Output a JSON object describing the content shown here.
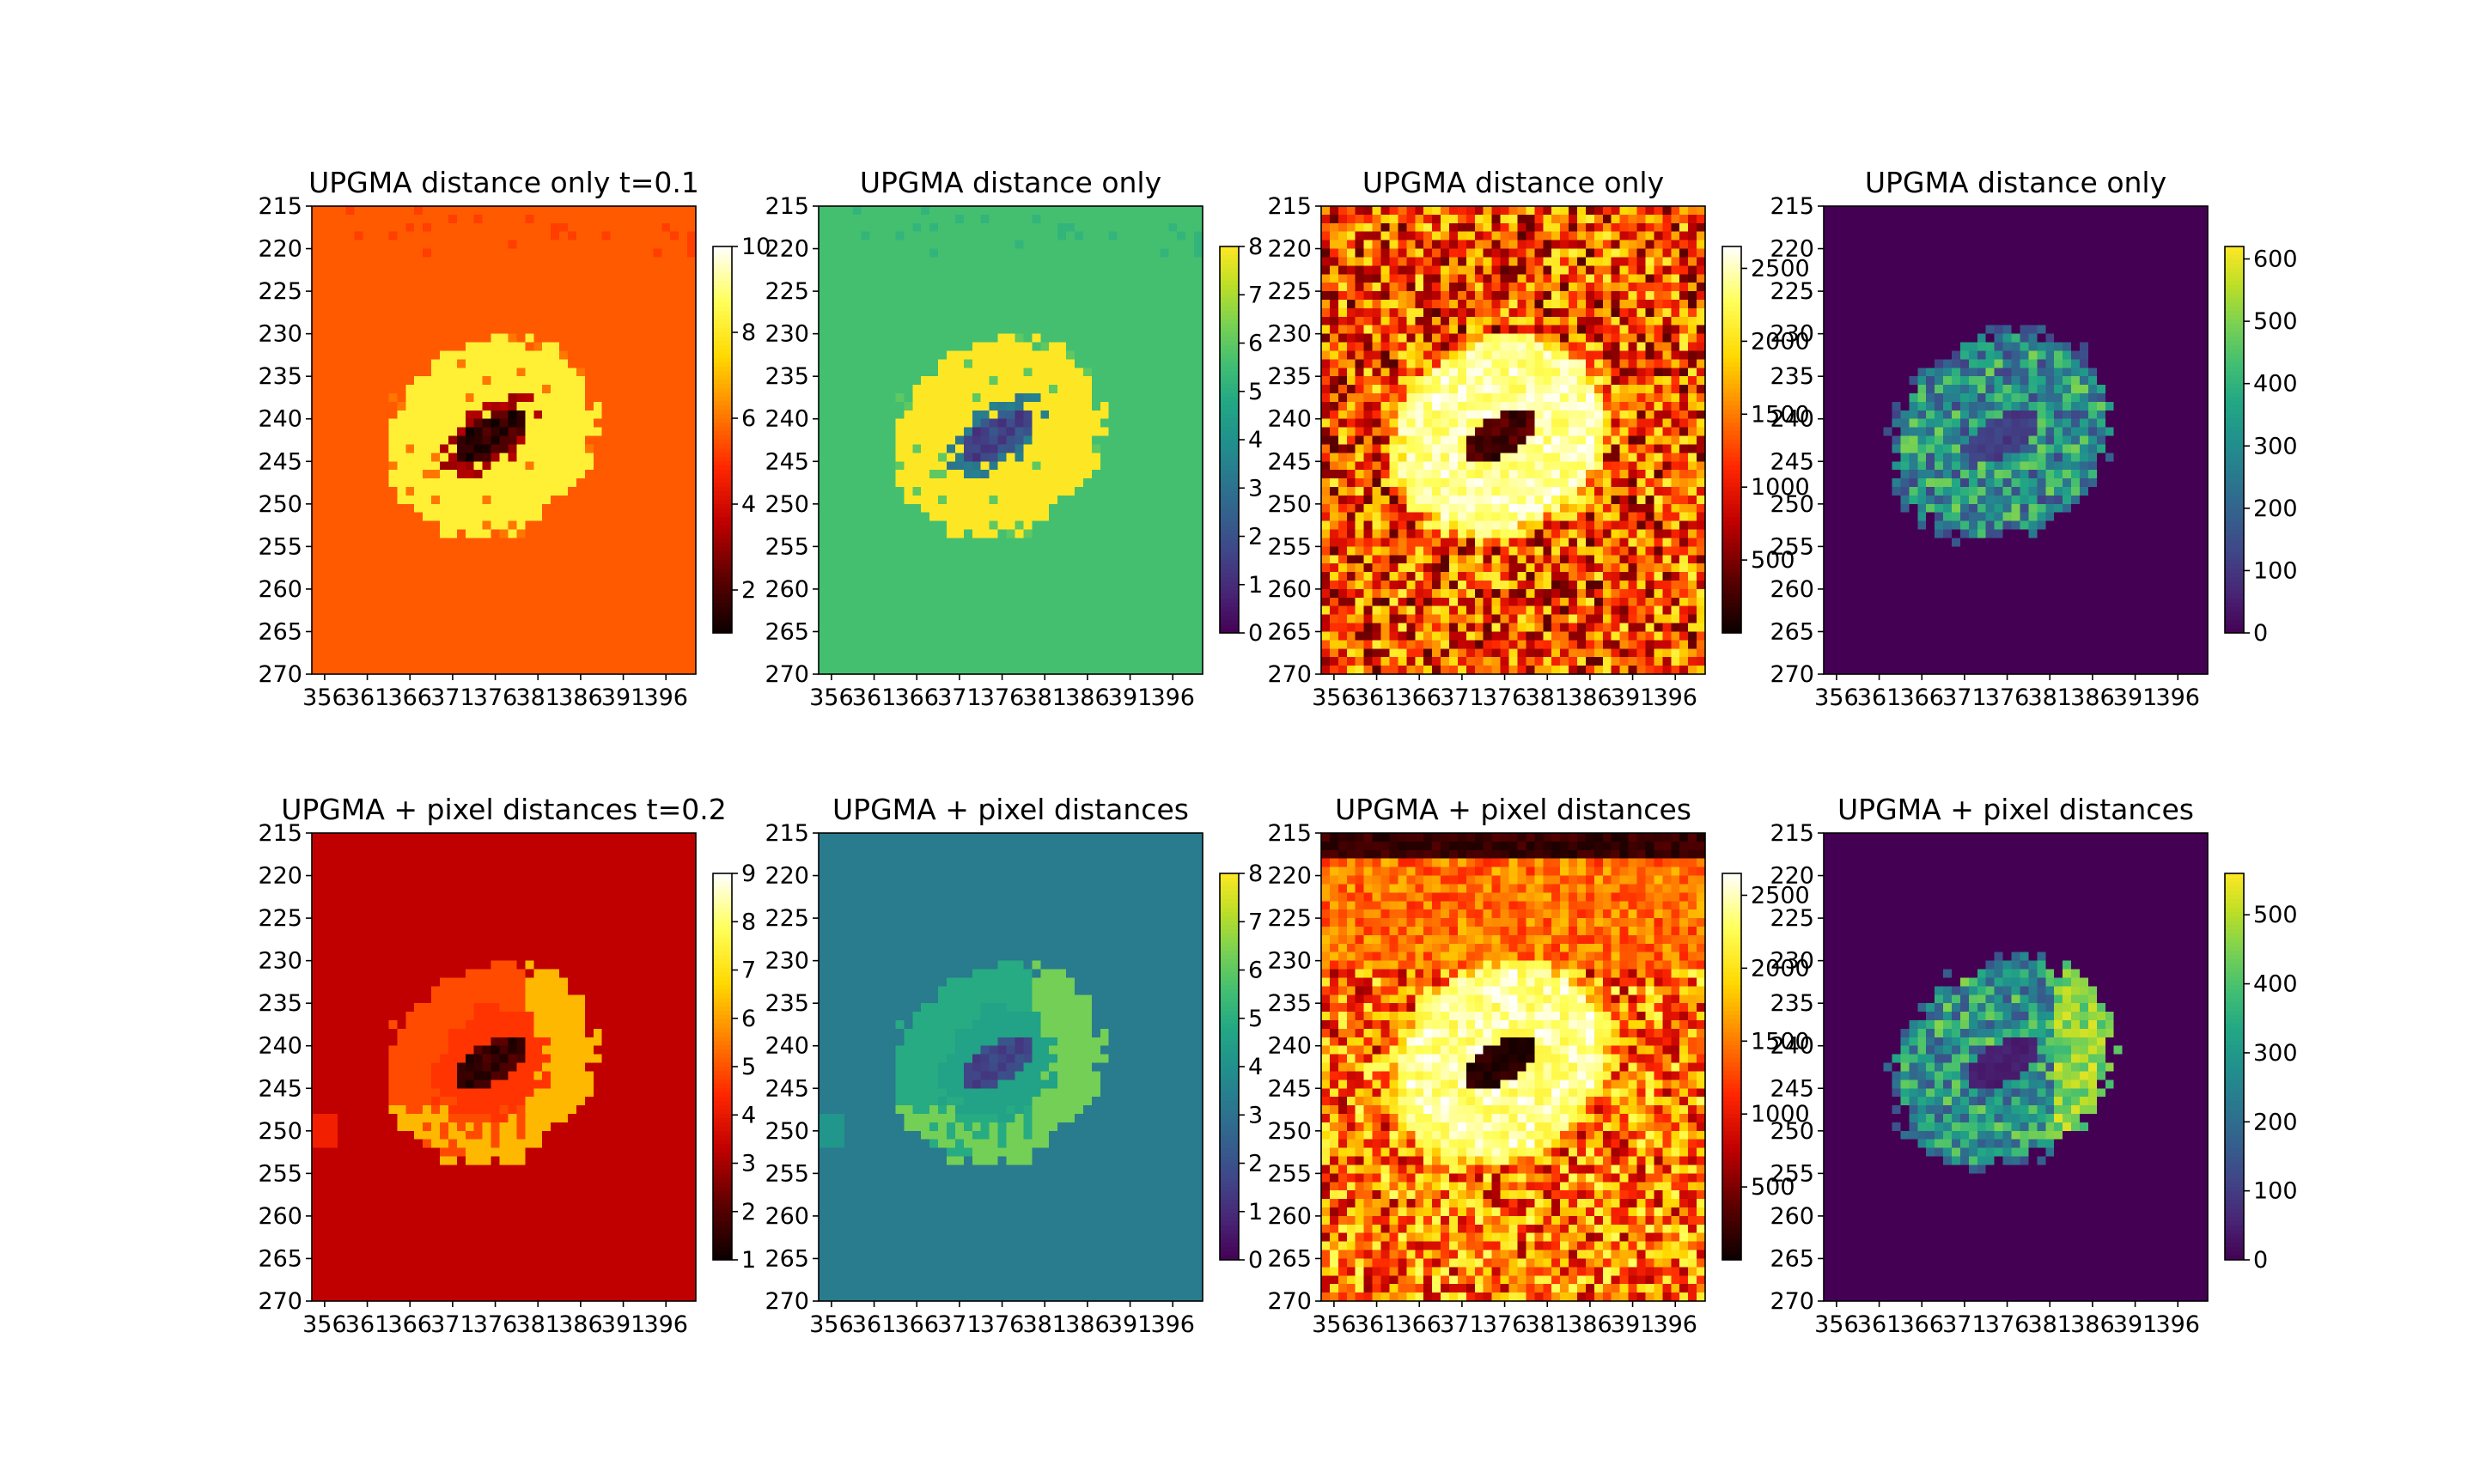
{
  "figure": {
    "description_free": true
  },
  "chart_data": [
    {
      "type": "heatmap",
      "title": "UPGMA distance only t=0.1",
      "colormap": "hot",
      "pattern": "clusters_t01",
      "x_ticks": [
        356,
        361,
        366,
        371,
        376,
        381,
        386,
        391,
        396
      ],
      "y_ticks": [
        215,
        220,
        225,
        230,
        235,
        240,
        245,
        250,
        255,
        260,
        265,
        270
      ],
      "xlim": [
        355,
        400
      ],
      "ylim": [
        270,
        215
      ],
      "colorbar": {
        "ticks": [
          2,
          4,
          6,
          8,
          10
        ],
        "range": [
          1,
          10
        ]
      }
    },
    {
      "type": "heatmap",
      "title": "UPGMA distance only",
      "colormap": "viridis",
      "pattern": "clusters_t01",
      "x_ticks": [
        356,
        361,
        366,
        371,
        376,
        381,
        386,
        391,
        396
      ],
      "y_ticks": [
        215,
        220,
        225,
        230,
        235,
        240,
        245,
        250,
        255,
        260,
        265,
        270
      ],
      "xlim": [
        355,
        400
      ],
      "ylim": [
        270,
        215
      ],
      "colorbar": {
        "ticks": [
          0,
          1,
          2,
          3,
          4,
          5,
          6,
          7,
          8
        ],
        "range": [
          0,
          8
        ]
      }
    },
    {
      "type": "heatmap",
      "title": "UPGMA distance only",
      "colormap": "hot",
      "pattern": "rank_dist",
      "x_ticks": [
        356,
        361,
        366,
        371,
        376,
        381,
        386,
        391,
        396
      ],
      "y_ticks": [
        215,
        220,
        225,
        230,
        235,
        240,
        245,
        250,
        255,
        260,
        265,
        270
      ],
      "xlim": [
        355,
        400
      ],
      "ylim": [
        270,
        215
      ],
      "colorbar": {
        "ticks": [
          500,
          1000,
          1500,
          2000,
          2500
        ],
        "range": [
          0,
          2650
        ]
      }
    },
    {
      "type": "heatmap",
      "title": "UPGMA distance only",
      "colormap": "viridis",
      "pattern": "value_dist",
      "x_ticks": [
        356,
        361,
        366,
        371,
        376,
        381,
        386,
        391,
        396
      ],
      "y_ticks": [
        215,
        220,
        225,
        230,
        235,
        240,
        245,
        250,
        255,
        260,
        265,
        270
      ],
      "xlim": [
        355,
        400
      ],
      "ylim": [
        270,
        215
      ],
      "colorbar": {
        "ticks": [
          0,
          100,
          200,
          300,
          400,
          500,
          600
        ],
        "range": [
          0,
          620
        ]
      }
    },
    {
      "type": "heatmap",
      "title": "UPGMA + pixel distances t=0.2",
      "colormap": "hot",
      "pattern": "clusters_t02",
      "x_ticks": [
        356,
        361,
        366,
        371,
        376,
        381,
        386,
        391,
        396
      ],
      "y_ticks": [
        215,
        220,
        225,
        230,
        235,
        240,
        245,
        250,
        255,
        260,
        265,
        270
      ],
      "xlim": [
        355,
        400
      ],
      "ylim": [
        270,
        215
      ],
      "colorbar": {
        "ticks": [
          1,
          2,
          3,
          4,
          5,
          6,
          7,
          8,
          9
        ],
        "range": [
          1,
          9
        ]
      }
    },
    {
      "type": "heatmap",
      "title": "UPGMA + pixel distances",
      "colormap": "viridis",
      "pattern": "clusters_t02",
      "x_ticks": [
        356,
        361,
        366,
        371,
        376,
        381,
        386,
        391,
        396
      ],
      "y_ticks": [
        215,
        220,
        225,
        230,
        235,
        240,
        245,
        250,
        255,
        260,
        265,
        270
      ],
      "xlim": [
        355,
        400
      ],
      "ylim": [
        270,
        215
      ],
      "colorbar": {
        "ticks": [
          0,
          1,
          2,
          3,
          4,
          5,
          6,
          7,
          8
        ],
        "range": [
          0,
          8
        ]
      }
    },
    {
      "type": "heatmap",
      "title": "UPGMA + pixel distances",
      "colormap": "hot",
      "pattern": "rank_pix",
      "x_ticks": [
        356,
        361,
        366,
        371,
        376,
        381,
        386,
        391,
        396
      ],
      "y_ticks": [
        215,
        220,
        225,
        230,
        235,
        240,
        245,
        250,
        255,
        260,
        265,
        270
      ],
      "xlim": [
        355,
        400
      ],
      "ylim": [
        270,
        215
      ],
      "colorbar": {
        "ticks": [
          500,
          1000,
          1500,
          2000,
          2500
        ],
        "range": [
          0,
          2650
        ]
      }
    },
    {
      "type": "heatmap",
      "title": "UPGMA + pixel distances",
      "colormap": "viridis",
      "pattern": "value_pix",
      "x_ticks": [
        356,
        361,
        366,
        371,
        376,
        381,
        386,
        391,
        396
      ],
      "y_ticks": [
        215,
        220,
        225,
        230,
        235,
        240,
        245,
        250,
        255,
        260,
        265,
        270
      ],
      "xlim": [
        355,
        400
      ],
      "ylim": [
        270,
        215
      ],
      "colorbar": {
        "ticks": [
          0,
          100,
          200,
          300,
          400,
          500
        ],
        "range": [
          0,
          560
        ]
      }
    }
  ]
}
